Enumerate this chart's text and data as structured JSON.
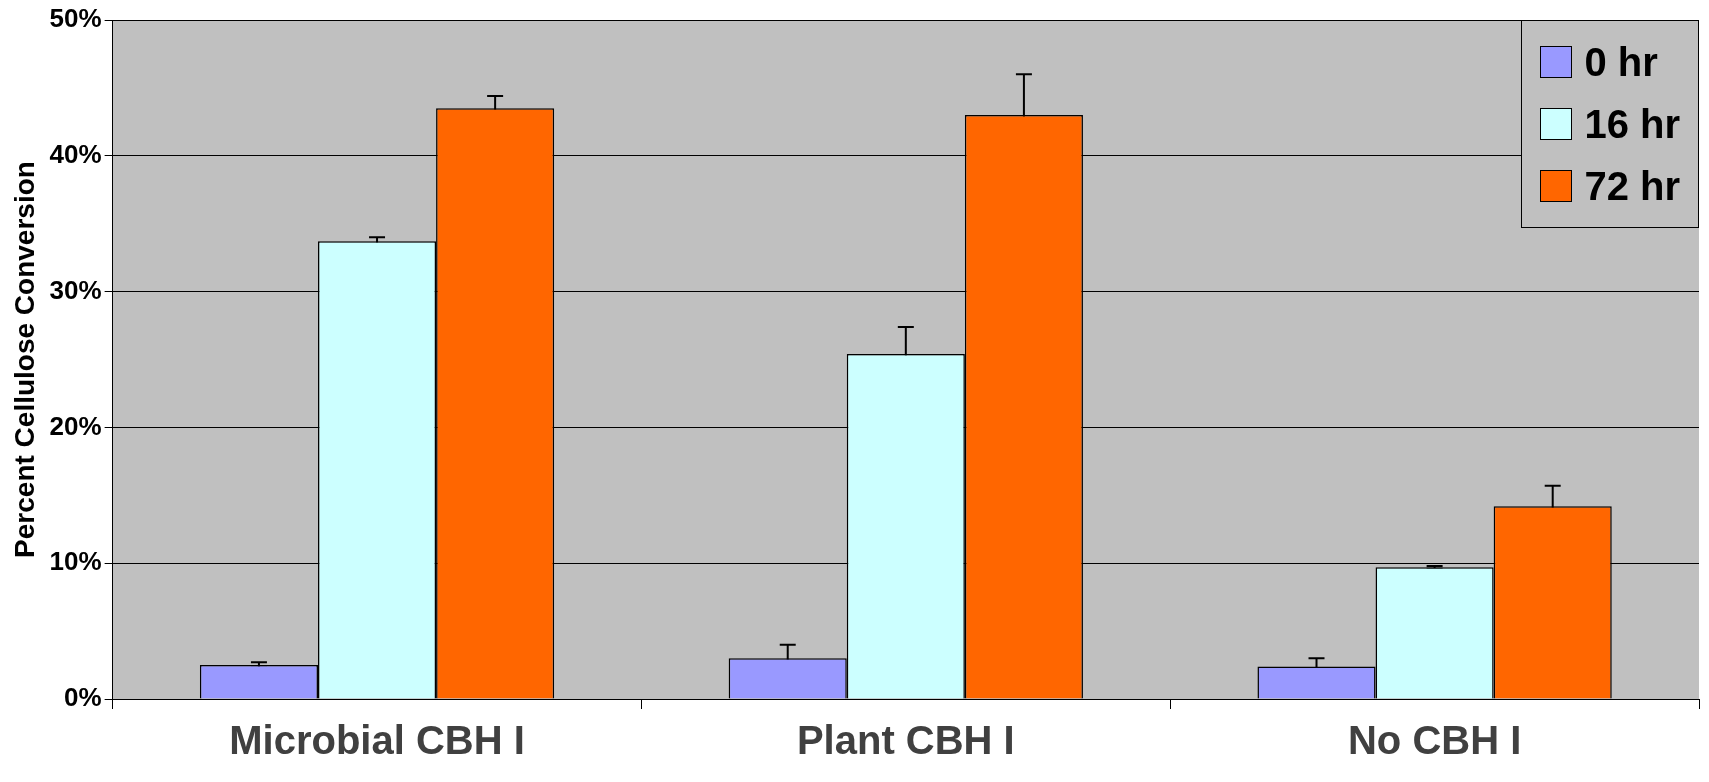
{
  "chart_data": {
    "type": "bar",
    "ylabel": "Percent Cellulose Conversion",
    "categories": [
      "Microbial CBH I",
      "Plant CBH I",
      "No CBH I"
    ],
    "series": [
      {
        "name": "0 hr",
        "color": "#9999ff",
        "values": [
          2.5,
          3.0,
          2.4
        ],
        "errors": [
          0.2,
          1.0,
          0.6
        ]
      },
      {
        "name": "16 hr",
        "color": "#ccffff",
        "values": [
          33.7,
          25.4,
          9.7
        ],
        "errors": [
          0.3,
          2.0,
          0.1
        ]
      },
      {
        "name": "72 hr",
        "color": "#ff6600",
        "values": [
          43.5,
          43.0,
          14.2
        ],
        "errors": [
          0.9,
          3.0,
          1.5
        ]
      }
    ],
    "ylim": [
      0,
      50
    ],
    "yticks": [
      {
        "value": 0,
        "label": "0%"
      },
      {
        "value": 10,
        "label": "10%"
      },
      {
        "value": 20,
        "label": "20%"
      },
      {
        "value": 30,
        "label": "30%"
      },
      {
        "value": 40,
        "label": "40%"
      },
      {
        "value": 50,
        "label": "50%"
      }
    ],
    "grid": "y",
    "legend": "top right"
  }
}
